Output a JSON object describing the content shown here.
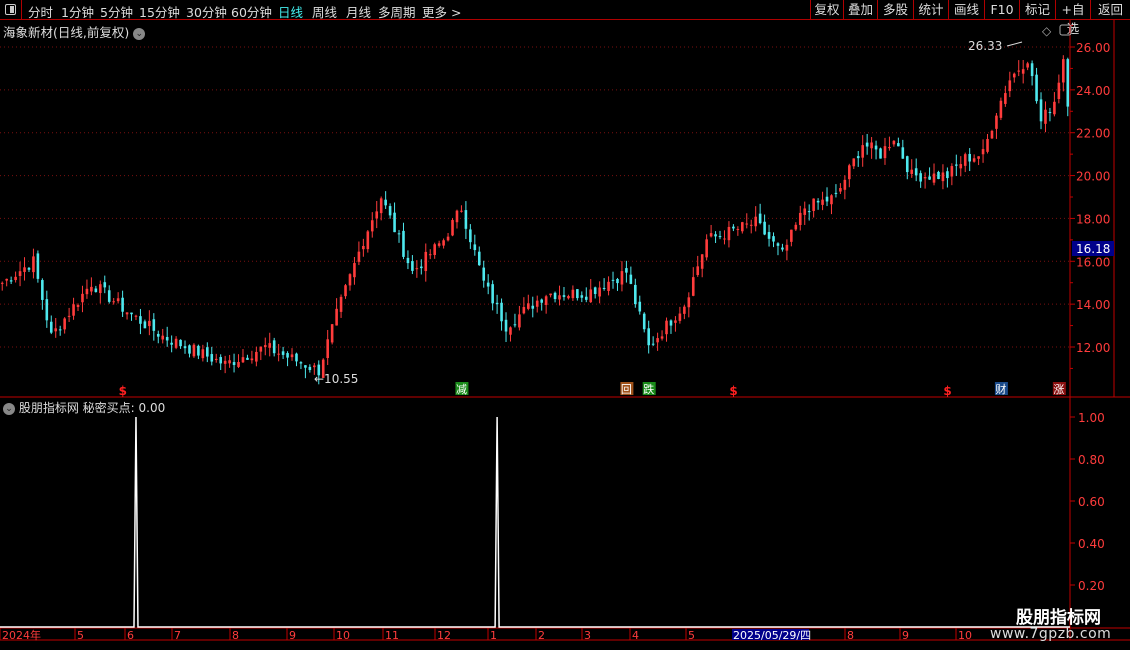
{
  "toolbar": {
    "periods": [
      "分时",
      "1分钟",
      "5分钟",
      "15分钟",
      "30分钟",
      "60分钟",
      "日线",
      "周线",
      "月线",
      "多周期",
      "更多 >"
    ],
    "active": "日线",
    "right_buttons": [
      "复权",
      "叠加",
      "多股",
      "统计",
      "画线",
      "F10",
      "标记",
      "+自选",
      "返回"
    ]
  },
  "stock": {
    "title": "海象新材(日线,前复权)",
    "current_price": "16.18",
    "high_label": "26.33",
    "low_label": "10.55"
  },
  "indicator": {
    "title": "股朋指标网 秘密买点: 0.00",
    "name": "秘密买点",
    "value": "0.00"
  },
  "colors": {
    "up": "#ff3c3c",
    "down": "#4ee8ee",
    "axis": "#c00000",
    "grid": "#7a1010",
    "price_tag_bg": "#00008b"
  },
  "markers": [
    {
      "label": "$",
      "bar": 27,
      "color": "#ff2020",
      "type": "plain"
    },
    {
      "label": "减",
      "bar": 103,
      "color": "#1a8a1a",
      "type": "box"
    },
    {
      "label": "回",
      "bar": 140,
      "color": "#a0521a",
      "type": "box"
    },
    {
      "label": "跌",
      "bar": 145,
      "color": "#1a8a1a",
      "type": "box"
    },
    {
      "label": "$",
      "bar": 164,
      "color": "#ff2020",
      "type": "plain"
    },
    {
      "label": "$",
      "bar": 212,
      "color": "#ff2020",
      "type": "plain"
    },
    {
      "label": "财",
      "bar": 224,
      "color": "#1a4a8a",
      "type": "box"
    },
    {
      "label": "涨",
      "bar": 237,
      "color": "#8a1010",
      "type": "box"
    }
  ],
  "chart_data": [
    {
      "type": "candlestick",
      "title": "海象新材(日线,前复权)",
      "ylim": [
        10.3,
        27
      ],
      "y_ticks": [
        "12.00",
        "14.00",
        "16.00",
        "18.00",
        "20.00",
        "22.00",
        "24.00",
        "26.00"
      ],
      "bar_count": 240,
      "close_keypoints": [
        [
          0,
          15.0
        ],
        [
          7,
          16.0
        ],
        [
          11,
          12.5
        ],
        [
          20,
          15.0
        ],
        [
          29,
          13.5
        ],
        [
          36,
          12.5
        ],
        [
          50,
          11.2
        ],
        [
          59,
          12.0
        ],
        [
          71,
          10.9
        ],
        [
          75,
          13.5
        ],
        [
          81,
          17.0
        ],
        [
          85,
          19.0
        ],
        [
          92,
          15.5
        ],
        [
          99,
          17.0
        ],
        [
          103,
          18.5
        ],
        [
          108,
          15.0
        ],
        [
          113,
          13.0
        ],
        [
          122,
          14.5
        ],
        [
          131,
          14.5
        ],
        [
          140,
          15.5
        ],
        [
          145,
          12.0
        ],
        [
          153,
          14.0
        ],
        [
          158,
          17.0
        ],
        [
          169,
          17.8
        ],
        [
          175,
          16.3
        ],
        [
          180,
          18.5
        ],
        [
          187,
          19.0
        ],
        [
          193,
          21.5
        ],
        [
          197,
          21.0
        ],
        [
          200,
          21.8
        ],
        [
          204,
          20.0
        ],
        [
          212,
          20.0
        ],
        [
          216,
          20.8
        ],
        [
          220,
          21.0
        ],
        [
          223,
          23.0
        ],
        [
          226,
          24.5
        ],
        [
          230,
          25.5
        ],
        [
          233,
          22.5
        ],
        [
          236,
          23.5
        ],
        [
          238,
          25.5
        ],
        [
          239,
          23.5
        ]
      ],
      "x_labels": [
        "2024年",
        "5",
        "6",
        "7",
        "8",
        "9",
        "10",
        "11",
        "12",
        "1",
        "2",
        "3",
        "4",
        "5",
        "2025/05/29/四",
        "8",
        "9",
        "10"
      ]
    },
    {
      "type": "line",
      "title": "秘密买点",
      "ylim": [
        0,
        1.08
      ],
      "y_ticks": [
        "0.20",
        "0.40",
        "0.60",
        "0.80",
        "1.00"
      ],
      "spikes": [
        {
          "bar": 30,
          "value": 1
        },
        {
          "bar": 111,
          "value": 1
        }
      ]
    }
  ],
  "watermark": {
    "name": "股朋指标网",
    "url": "www.7gpzb.com"
  }
}
